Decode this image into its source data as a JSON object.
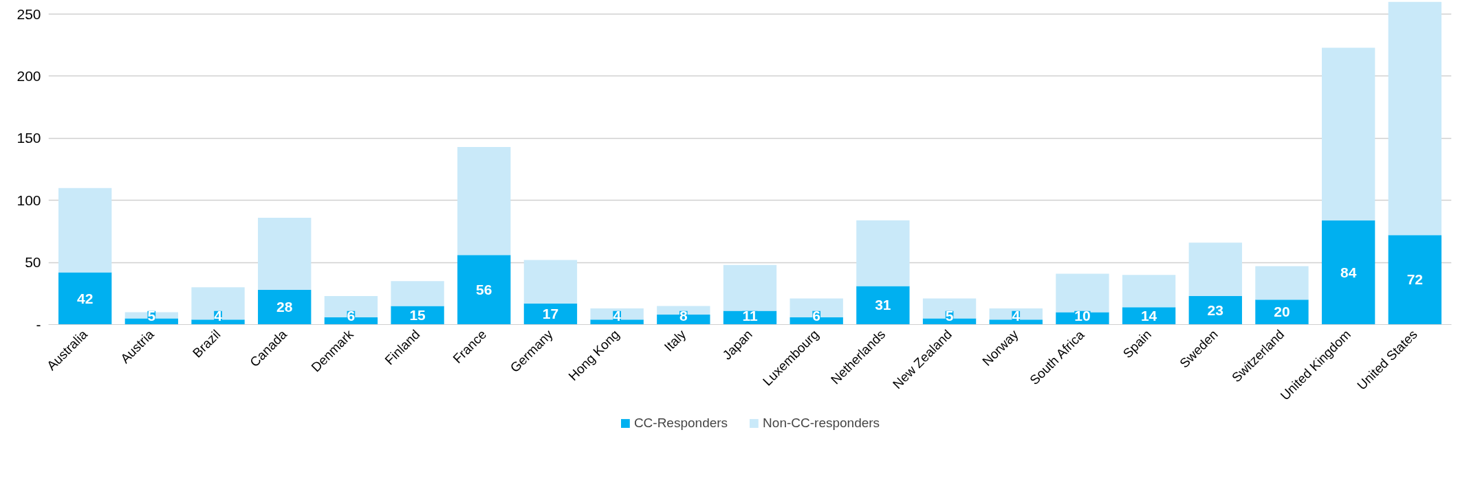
{
  "chart_data": {
    "type": "bar",
    "stacked": true,
    "categories": [
      "Australia",
      "Austria",
      "Brazil",
      "Canada",
      "Denmark",
      "Finland",
      "France",
      "Germany",
      "Hong Kong",
      "Italy",
      "Japan",
      "Luxembourg",
      "Netherlands",
      "New Zealand",
      "Norway",
      "South Africa",
      "Spain",
      "Sweden",
      "Switzerland",
      "United Kingdom",
      "United States"
    ],
    "series": [
      {
        "name": "CC-Responders",
        "color": "#00b0f0",
        "values": [
          42,
          5,
          4,
          28,
          6,
          15,
          56,
          17,
          4,
          8,
          11,
          6,
          31,
          5,
          4,
          10,
          14,
          23,
          20,
          84,
          72
        ],
        "value_labels": [
          "42",
          "5",
          "4",
          "28",
          "6",
          "15",
          "56",
          "17",
          "4",
          "8",
          "11",
          "6",
          "31",
          "5",
          "4",
          "10",
          "14",
          "23",
          "20",
          "84",
          "72"
        ]
      },
      {
        "name": "Non-CC-responders",
        "color": "#c9e9f9",
        "values": [
          68,
          5,
          26,
          58,
          17,
          20,
          87,
          35,
          9,
          7,
          37,
          15,
          53,
          16,
          9,
          31,
          26,
          43,
          27,
          139,
          188
        ]
      }
    ],
    "ylim": [
      0,
      260
    ],
    "yticks": [
      {
        "value": 0,
        "label": "-"
      },
      50,
      100,
      150,
      200,
      250
    ],
    "grid": "y",
    "legend": "bottom"
  }
}
